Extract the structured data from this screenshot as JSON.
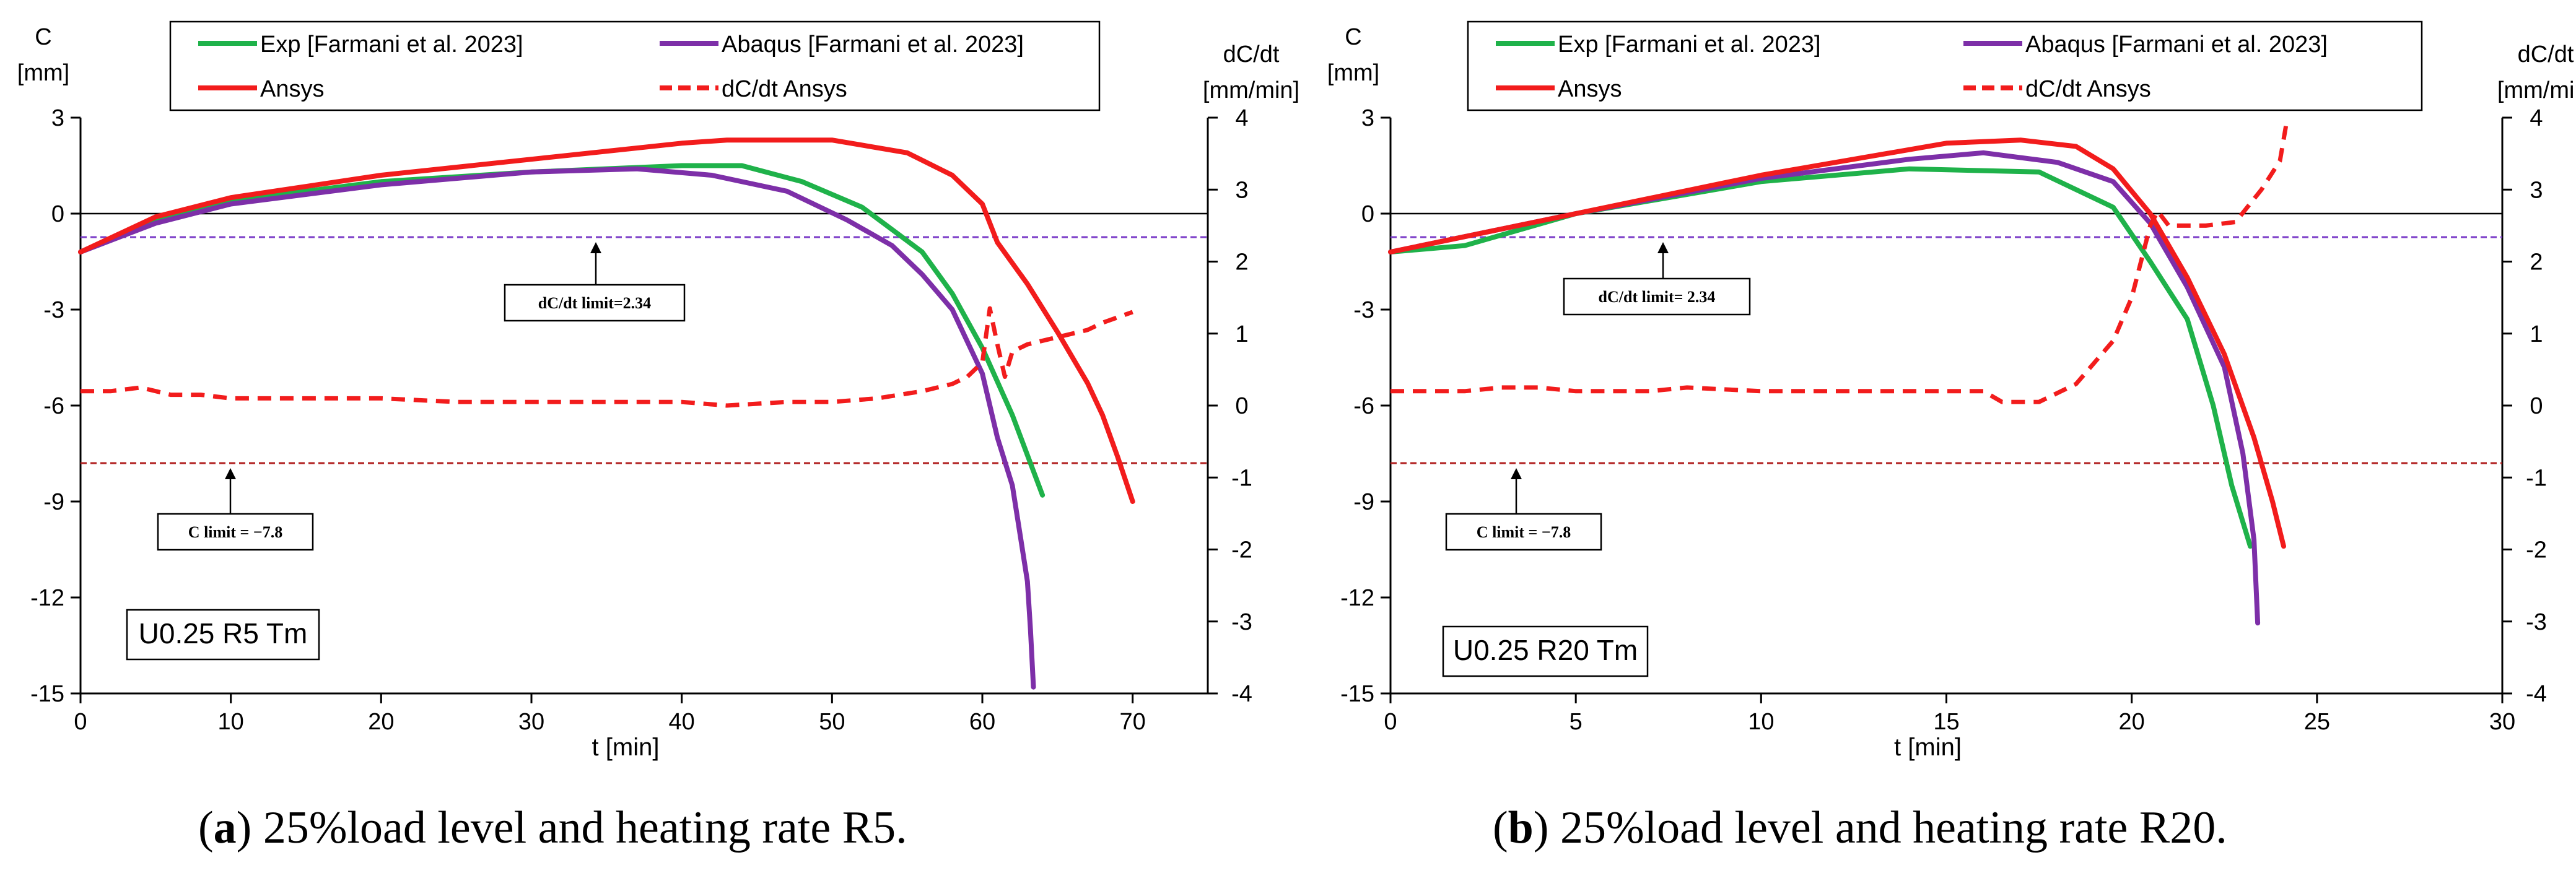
{
  "colors": {
    "exp": "#1fb24a",
    "abaqus": "#7d2fa8",
    "ansys": "#f21c1c",
    "dcdt": "#f21c1c",
    "dcdt_limit": "#7d3fc8",
    "c_limit": "#b22222"
  },
  "panels": [
    {
      "caption_letter": "a",
      "caption_rest": " 25%load level and heating rate R5.",
      "chart_data": {
        "type": "line",
        "xlabel": "t [min]",
        "ylabel_left": [
          "C",
          "[mm]"
        ],
        "ylabel_right": [
          "dC/dt",
          "[mm/min]"
        ],
        "xlim": [
          0,
          75
        ],
        "xticks": [
          0,
          10,
          20,
          30,
          40,
          50,
          60,
          70
        ],
        "ylim_left": [
          -15,
          3
        ],
        "yticks_left": [
          3,
          0,
          -3,
          -6,
          -9,
          -12,
          -15
        ],
        "ylim_right": [
          -4,
          4
        ],
        "yticks_right": [
          4,
          3,
          2,
          1,
          0,
          -1,
          -2,
          -3,
          -4
        ],
        "legend": [
          "Exp [Farmani et al. 2023]",
          "Abaqus [Farmani et al. 2023]",
          "Ansys",
          "dC/dt Ansys"
        ],
        "annotations": {
          "dcdt_limit_label": "dC/dt limit=2.34",
          "dcdt_limit_value": 2.34,
          "c_limit_label": "C limit = −7.8",
          "c_limit_value": -7.8,
          "specimen_label": "U0.25 R5 Tm"
        },
        "series": [
          {
            "name": "Exp [Farmani et al. 2023]",
            "axis": "left",
            "style": "solid",
            "x": [
              0,
              5,
              10,
              20,
              30,
              40,
              44,
              48,
              52,
              56,
              58,
              60,
              62,
              64
            ],
            "y": [
              -1.2,
              -0.2,
              0.4,
              1.0,
              1.3,
              1.5,
              1.5,
              1.0,
              0.2,
              -1.2,
              -2.5,
              -4.2,
              -6.3,
              -8.8
            ]
          },
          {
            "name": "Abaqus [Farmani et al. 2023]",
            "axis": "left",
            "style": "solid",
            "x": [
              0,
              5,
              10,
              20,
              30,
              37,
              42,
              47,
              51,
              54,
              56,
              58,
              60,
              61,
              62,
              62.5,
              63,
              63.2,
              63.4
            ],
            "y": [
              -1.2,
              -0.3,
              0.3,
              0.9,
              1.3,
              1.4,
              1.2,
              0.7,
              -0.2,
              -1.0,
              -1.9,
              -3.0,
              -5.0,
              -7.0,
              -8.5,
              -10.0,
              -11.5,
              -13.0,
              -14.8
            ]
          },
          {
            "name": "Ansys",
            "axis": "left",
            "style": "solid",
            "x": [
              0,
              5,
              10,
              20,
              30,
              40,
              43,
              50,
              55,
              58,
              60,
              61,
              63,
              65,
              67,
              68,
              69,
              70
            ],
            "y": [
              -1.2,
              -0.1,
              0.5,
              1.2,
              1.7,
              2.2,
              2.3,
              2.3,
              1.9,
              1.2,
              0.3,
              -0.9,
              -2.2,
              -3.7,
              -5.3,
              -6.3,
              -7.6,
              -9.0
            ]
          },
          {
            "name": "dC/dt Ansys",
            "axis": "right",
            "style": "dashed",
            "x": [
              0,
              2,
              4,
              6,
              8,
              10,
              15,
              20,
              25,
              30,
              35,
              40,
              43,
              47,
              50,
              53,
              56,
              58,
              59,
              60,
              60.5,
              61,
              61.5,
              62,
              62.5,
              63,
              65,
              67,
              68,
              70
            ],
            "y": [
              0.2,
              0.2,
              0.25,
              0.15,
              0.15,
              0.1,
              0.1,
              0.1,
              0.05,
              0.05,
              0.05,
              0.05,
              0.0,
              0.05,
              0.05,
              0.1,
              0.2,
              0.3,
              0.4,
              0.6,
              1.35,
              0.85,
              0.4,
              0.75,
              0.8,
              0.85,
              0.95,
              1.05,
              1.15,
              1.3
            ]
          }
        ]
      }
    },
    {
      "caption_letter": "b",
      "caption_rest": " 25%load level and heating rate R20.",
      "chart_data": {
        "type": "line",
        "xlabel": "t [min]",
        "ylabel_left": [
          "C",
          "[mm]"
        ],
        "ylabel_right": [
          "dC/dt",
          "[mm/min]"
        ],
        "xlim": [
          0,
          30
        ],
        "xticks": [
          0,
          5,
          10,
          15,
          20,
          25,
          30
        ],
        "ylim_left": [
          -15,
          3
        ],
        "yticks_left": [
          3,
          0,
          -3,
          -6,
          -9,
          -12,
          -15
        ],
        "ylim_right": [
          -4,
          4
        ],
        "yticks_right": [
          4,
          3,
          2,
          1,
          0,
          -1,
          -2,
          -3,
          -4
        ],
        "legend": [
          "Exp [Farmani et al. 2023]",
          "Abaqus [Farmani et al. 2023]",
          "Ansys",
          "dC/dt Ansys"
        ],
        "annotations": {
          "dcdt_limit_label": "dC/dt limit= 2.34",
          "dcdt_limit_value": 2.34,
          "c_limit_label": "C limit = −7.8",
          "c_limit_value": -7.8,
          "specimen_label": "U0.25 R20 Tm"
        },
        "series": [
          {
            "name": "Exp [Farmani et al. 2023]",
            "axis": "left",
            "style": "solid",
            "x": [
              0,
              2,
              5,
              10,
              14,
              17.5,
              19.5,
              20.5,
              21.5,
              22.2,
              22.7,
              23.2
            ],
            "y": [
              -1.2,
              -1.0,
              0.0,
              1.0,
              1.4,
              1.3,
              0.2,
              -1.5,
              -3.3,
              -6.0,
              -8.5,
              -10.4
            ]
          },
          {
            "name": "Abaqus [Farmani et al. 2023]",
            "axis": "left",
            "style": "solid",
            "x": [
              0,
              5,
              10,
              14,
              16,
              18,
              19.5,
              20.5,
              21.5,
              22.5,
              23.0,
              23.3,
              23.4
            ],
            "y": [
              -1.2,
              0.0,
              1.1,
              1.7,
              1.9,
              1.6,
              1.0,
              -0.3,
              -2.3,
              -4.8,
              -7.5,
              -10.2,
              -12.8
            ]
          },
          {
            "name": "Ansys",
            "axis": "left",
            "style": "solid",
            "x": [
              0,
              5,
              10,
              15,
              17,
              18.5,
              19.5,
              20.5,
              21.5,
              22.5,
              23.3,
              23.8,
              24.1
            ],
            "y": [
              -1.2,
              0.0,
              1.2,
              2.2,
              2.3,
              2.1,
              1.4,
              0.0,
              -2.0,
              -4.4,
              -7.0,
              -9.0,
              -10.4
            ]
          },
          {
            "name": "dC/dt Ansys",
            "axis": "right",
            "style": "dashed",
            "x": [
              0,
              2,
              3,
              4,
              5,
              7,
              8,
              10,
              12,
              14,
              15,
              16,
              16.5,
              17.5,
              18.5,
              19.5,
              20,
              20.5,
              20.7,
              21,
              22,
              22.8,
              23.5,
              24,
              24.2
            ],
            "y": [
              0.2,
              0.2,
              0.25,
              0.25,
              0.2,
              0.2,
              0.25,
              0.2,
              0.2,
              0.2,
              0.2,
              0.2,
              0.05,
              0.05,
              0.3,
              0.9,
              1.5,
              2.5,
              2.7,
              2.5,
              2.5,
              2.55,
              3.0,
              3.4,
              4.0
            ]
          }
        ]
      }
    }
  ]
}
